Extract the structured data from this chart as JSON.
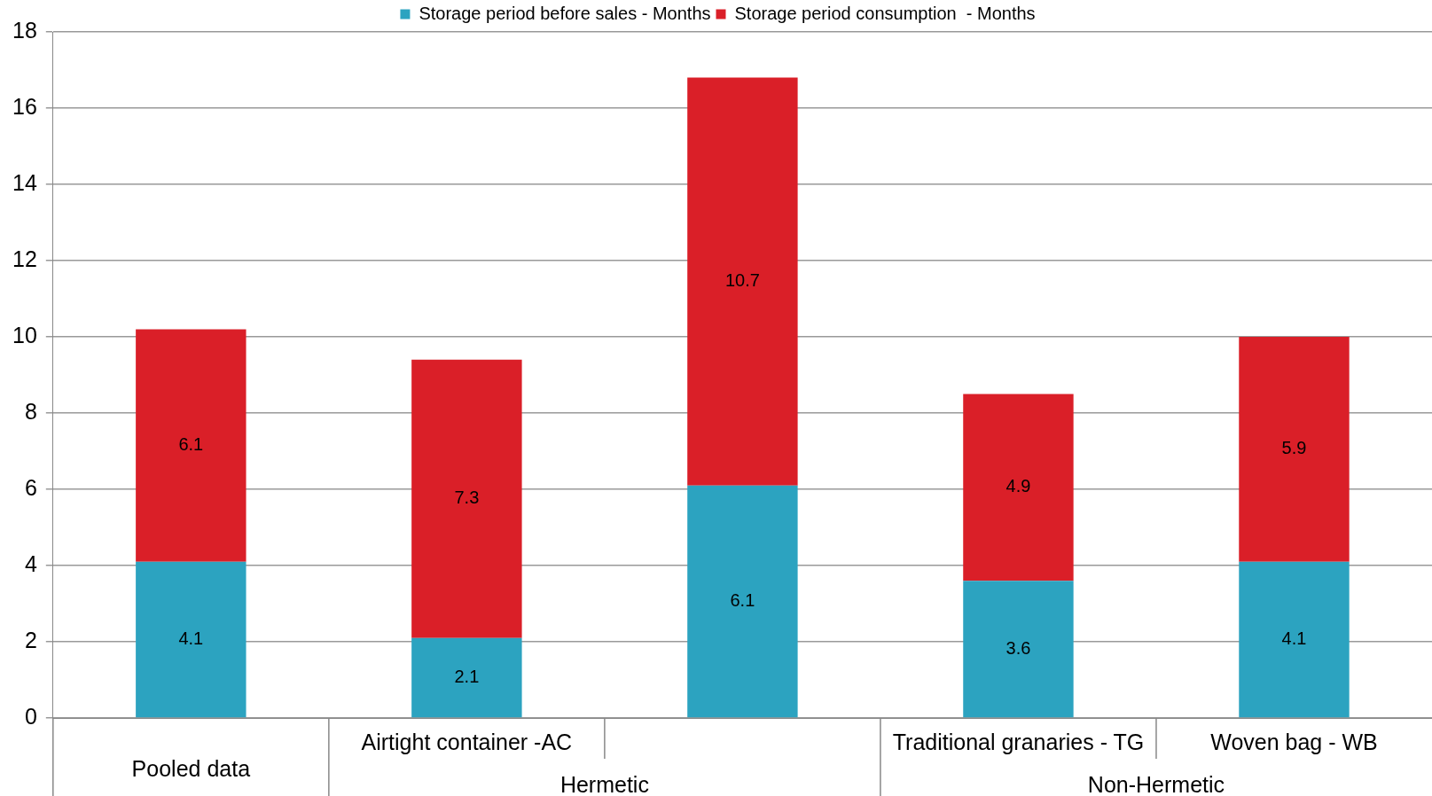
{
  "chart_data": {
    "type": "bar",
    "stacked": true,
    "categories": [
      "Pooled data",
      "Airtight container -AC",
      null,
      "Traditional granaries - TG",
      "Woven bag - WB"
    ],
    "series": [
      {
        "name": "Storage period before sales - Months",
        "color": "#2ca3c0",
        "values": [
          4.1,
          2.1,
          6.1,
          3.6,
          4.1
        ]
      },
      {
        "name": "Storage period consumption  - Months",
        "color": "#da1f28",
        "values": [
          6.1,
          7.3,
          10.7,
          4.9,
          5.9
        ]
      }
    ],
    "ylim": [
      0,
      18
    ],
    "yticks": [
      0,
      2,
      4,
      6,
      8,
      10,
      12,
      14,
      16,
      18
    ],
    "grid": "y",
    "legend": "top",
    "data_labels": true,
    "annotations": [
      "Hermetic",
      "Non-Hermetic"
    ]
  }
}
